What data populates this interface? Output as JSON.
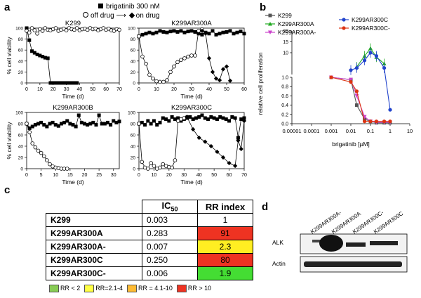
{
  "panels": {
    "a": "a",
    "b": "b",
    "c": "c",
    "d": "d"
  },
  "legend_a": {
    "top": "brigatinib 300 nM",
    "off": "off drug",
    "on": "on drug"
  },
  "chart_data": [
    {
      "type": "line",
      "title": "K299",
      "xlabel": "Time (d)",
      "ylabel": "% cell viability",
      "xlim": [
        0,
        70
      ],
      "ylim": [
        0,
        100
      ],
      "xticks": [
        0,
        10,
        20,
        30,
        40,
        50,
        60,
        70
      ],
      "yticks": [
        0,
        20,
        40,
        60,
        80,
        100
      ],
      "series": [
        {
          "name": "brigatinib 300 nM",
          "marker": "filled-square",
          "x": [
            0,
            2,
            4,
            6,
            8,
            10,
            12,
            14,
            16,
            18,
            20,
            22,
            24,
            26,
            28,
            30,
            32,
            34,
            36,
            38
          ],
          "y": [
            100,
            78,
            58,
            55,
            52,
            50,
            48,
            46,
            45,
            0,
            0,
            0,
            0,
            0,
            0,
            0,
            0,
            0,
            0,
            0
          ]
        },
        {
          "name": "off drug",
          "marker": "open-circle",
          "x": [
            0,
            2,
            4,
            6,
            8,
            10,
            12,
            14,
            16,
            18,
            20,
            22,
            24,
            26,
            28,
            30,
            32,
            34,
            36,
            38,
            40,
            42,
            44,
            46,
            48,
            50,
            52,
            54,
            56,
            58,
            60,
            62,
            64,
            66,
            68,
            70
          ],
          "y": [
            95,
            92,
            100,
            96,
            90,
            98,
            95,
            100,
            97,
            96,
            98,
            100,
            95,
            97,
            99,
            96,
            100,
            98,
            97,
            100,
            96,
            98,
            99,
            97,
            100,
            98,
            99,
            96,
            98,
            100,
            97,
            99,
            96,
            95,
            98,
            97
          ]
        }
      ]
    },
    {
      "type": "line",
      "title": "K299AR300A",
      "xlabel": "Time (d)",
      "ylabel": "",
      "xlim": [
        0,
        60
      ],
      "ylim": [
        0,
        100
      ],
      "xticks": [
        0,
        10,
        20,
        30,
        40,
        50,
        60
      ],
      "yticks": [
        0,
        20,
        40,
        60,
        80,
        100
      ],
      "series": [
        {
          "name": "brigatinib 300 nM",
          "marker": "filled-square",
          "x": [
            0,
            2,
            4,
            6,
            8,
            10,
            12,
            14,
            16,
            18,
            20,
            22,
            24,
            26,
            28,
            30,
            32,
            34,
            36,
            38,
            40,
            42,
            44,
            46,
            48,
            50,
            52,
            54,
            56,
            58,
            60
          ],
          "y": [
            85,
            88,
            90,
            92,
            90,
            92,
            95,
            93,
            92,
            94,
            95,
            93,
            95,
            92,
            94,
            95,
            93,
            90,
            88,
            92,
            90,
            95,
            88,
            90,
            92,
            93,
            95,
            90,
            92,
            94,
            90
          ]
        },
        {
          "name": "off drug",
          "marker": "open-circle",
          "x": [
            0,
            2,
            4,
            6,
            8,
            10,
            12,
            14,
            16,
            18,
            20,
            22,
            24,
            26,
            28,
            30,
            32,
            34,
            36
          ],
          "y": [
            85,
            48,
            35,
            15,
            8,
            3,
            2,
            2,
            5,
            20,
            30,
            38,
            42,
            45,
            48,
            50,
            50,
            95,
            98
          ]
        },
        {
          "name": "on drug",
          "marker": "filled-diamond",
          "x": [
            36,
            38,
            40,
            42,
            44,
            46,
            48,
            50,
            52
          ],
          "y": [
            95,
            90,
            45,
            20,
            8,
            5,
            25,
            30,
            4
          ]
        }
      ]
    },
    {
      "type": "line",
      "title": "K299AR300B",
      "xlabel": "Time (d)",
      "ylabel": "% cell viability",
      "xlim": [
        0,
        32
      ],
      "ylim": [
        0,
        100
      ],
      "xticks": [
        0,
        5,
        10,
        15,
        20,
        25,
        30
      ],
      "yticks": [
        0,
        20,
        40,
        60,
        80,
        100
      ],
      "series": [
        {
          "name": "brigatinib 300 nM",
          "marker": "filled-square",
          "x": [
            0,
            1,
            2,
            3,
            4,
            5,
            6,
            7,
            8,
            9,
            10,
            11,
            12,
            13,
            14,
            15,
            16,
            17,
            18,
            19,
            20,
            21,
            22,
            23,
            24,
            25,
            26,
            27,
            28,
            29,
            30,
            31,
            32
          ],
          "y": [
            80,
            72,
            75,
            78,
            80,
            82,
            78,
            75,
            80,
            82,
            78,
            76,
            80,
            82,
            85,
            80,
            78,
            75,
            95,
            82,
            80,
            78,
            80,
            82,
            78,
            95,
            80,
            80,
            82,
            78,
            85,
            82,
            84
          ]
        },
        {
          "name": "off drug",
          "marker": "open-circle",
          "x": [
            0,
            1,
            2,
            3,
            4,
            5,
            6,
            7,
            8,
            9,
            10,
            11,
            12,
            13,
            14
          ],
          "y": [
            80,
            65,
            45,
            38,
            32,
            28,
            22,
            15,
            8,
            4,
            2,
            1,
            0,
            0,
            0
          ]
        }
      ]
    },
    {
      "type": "line",
      "title": "K299AR300C",
      "xlabel": "Time (d)",
      "ylabel": "",
      "xlim": [
        0,
        70
      ],
      "ylim": [
        0,
        100
      ],
      "xticks": [
        0,
        10,
        20,
        30,
        40,
        50,
        60,
        70
      ],
      "yticks": [
        0,
        20,
        40,
        60,
        80,
        100
      ],
      "series": [
        {
          "name": "brigatinib 300 nM",
          "marker": "filled-square",
          "x": [
            0,
            2,
            4,
            6,
            8,
            10,
            12,
            14,
            16,
            18,
            20,
            22,
            24,
            26,
            28,
            30,
            32,
            34,
            36,
            38,
            40,
            42,
            44,
            46,
            48,
            50,
            52,
            54,
            56,
            58,
            60,
            62,
            64,
            66,
            68,
            70
          ],
          "y": [
            80,
            82,
            78,
            85,
            80,
            85,
            78,
            82,
            90,
            88,
            85,
            92,
            88,
            90,
            85,
            88,
            90,
            92,
            88,
            90,
            92,
            95,
            90,
            88,
            92,
            90,
            88,
            92,
            90,
            88,
            85,
            92,
            90,
            55,
            88,
            90
          ]
        },
        {
          "name": "off drug",
          "marker": "open-circle",
          "x": [
            0,
            2,
            4,
            6,
            8,
            10,
            12,
            14,
            16,
            18,
            20,
            22,
            24,
            26,
            28,
            30,
            32
          ],
          "y": [
            80,
            12,
            2,
            0,
            10,
            5,
            0,
            2,
            8,
            5,
            3,
            2,
            15,
            85,
            88,
            90,
            92
          ]
        },
        {
          "name": "on drug",
          "marker": "filled-diamond",
          "x": [
            32,
            36,
            40,
            44,
            48,
            52,
            56,
            60,
            64,
            66,
            68,
            70
          ],
          "y": [
            92,
            70,
            55,
            48,
            40,
            30,
            20,
            10,
            5,
            50,
            35,
            85
          ]
        }
      ]
    },
    {
      "type": "line",
      "title": "",
      "xlabel": "brigatinib [µM]",
      "ylabel": "relative cell proliferation",
      "xscale": "log",
      "xlim": [
        1e-05,
        10
      ],
      "xticks": [
        "0.00001",
        "0.0001",
        "0.001",
        "0.01",
        "0.1",
        "1",
        "10"
      ],
      "upper_yticks": [
        10,
        15,
        20
      ],
      "lower_yticks": [
        0.0,
        0.2,
        0.4,
        0.6,
        0.8,
        1.0
      ],
      "legend": [
        "K299",
        "K299AR300A",
        "K299AR300A-",
        "K299AR300C",
        "K299AR300C-"
      ],
      "series": [
        {
          "name": "K299",
          "color": "#555555",
          "marker": "square",
          "x": [
            0.001,
            0.01,
            0.02,
            0.05,
            0.1,
            0.2,
            0.5,
            1
          ],
          "y": [
            1.0,
            0.95,
            0.4,
            0.1,
            0.05,
            0.02,
            0.02,
            0.02
          ]
        },
        {
          "name": "K299AR300A",
          "color": "#22aa22",
          "marker": "triangle-up",
          "x": [
            0.02,
            0.05,
            0.1,
            0.2,
            0.5
          ],
          "y": [
            3.5,
            8.5,
            12.0,
            8.0,
            5.0
          ]
        },
        {
          "name": "K299AR300A-",
          "color": "#cc44cc",
          "marker": "triangle-down",
          "x": [
            0.001,
            0.01,
            0.02,
            0.05,
            0.1,
            0.2,
            0.5,
            1
          ],
          "y": [
            1.0,
            0.95,
            0.6,
            0.15,
            0.05,
            0.03,
            0.03,
            0.03
          ]
        },
        {
          "name": "K299AR300C",
          "color": "#2244cc",
          "marker": "circle",
          "x": [
            0.01,
            0.02,
            0.05,
            0.1,
            0.2,
            0.5,
            1
          ],
          "y": [
            2.0,
            3.0,
            6.5,
            10.0,
            8.5,
            3.0,
            0.3
          ]
        },
        {
          "name": "K299AR300C-",
          "color": "#dd3311",
          "marker": "circle",
          "x": [
            0.001,
            0.01,
            0.02,
            0.05,
            0.1,
            0.2,
            0.5,
            1
          ],
          "y": [
            1.0,
            0.9,
            0.7,
            0.05,
            0.05,
            0.05,
            0.05,
            0.05
          ]
        }
      ]
    },
    {
      "type": "table",
      "columns": [
        "",
        "IC50",
        "RR index"
      ],
      "rows": [
        {
          "name": "K299",
          "ic50": "0.003",
          "rr": "1",
          "color": "#ffffff"
        },
        {
          "name": "K299AR300A",
          "ic50": "0.283",
          "rr": "91",
          "color": "#ee3322"
        },
        {
          "name": "K299AR300A-",
          "ic50": "0.007",
          "rr": "2.3",
          "color": "#ffee22"
        },
        {
          "name": "K299AR300C",
          "ic50": "0.250",
          "rr": "80",
          "color": "#ee3322"
        },
        {
          "name": "K299AR300C-",
          "ic50": "0.006",
          "rr": "1.9",
          "color": "#44dd33"
        }
      ],
      "legend": [
        {
          "label": "RR < 2",
          "color": "#88cc55"
        },
        {
          "label": "RR=2.1-4",
          "color": "#ffff44"
        },
        {
          "label": "RR = 4.1-10",
          "color": "#ffbb33"
        },
        {
          "label": "RR > 10",
          "color": "#ee3322"
        }
      ]
    }
  ],
  "blot": {
    "lanes": [
      "K299AR300A-",
      "K299AR300A",
      "K299AR300C-",
      "K299AR300C"
    ],
    "rows": [
      "ALK",
      "Actin"
    ]
  }
}
